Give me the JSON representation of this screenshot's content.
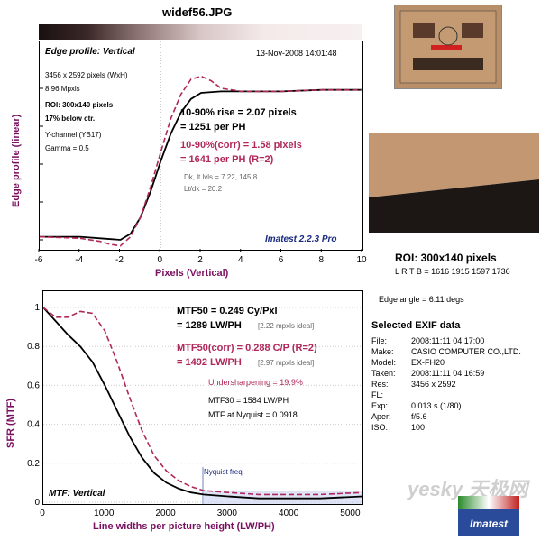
{
  "title": "widef56.JPG",
  "edge": {
    "heading": "Edge profile: Vertical",
    "date": "13-Nov-2008 14:01:48",
    "dims": "3456 x 2592 pixels (WxH)",
    "mpxls": "8.96 Mpxls",
    "roi": "ROI: 300x140 pixels",
    "below": "17% below ctr.",
    "channel": "Y-channel  (YB17)",
    "gamma": "Gamma = 0.5",
    "rise1": "10-90% rise = 2.07 pixels",
    "rise2": "= 1251 per PH",
    "corr1": "10-90%(corr) = 1.58 pixels",
    "corr2": "= 1641 per PH   (R=2)",
    "dk": "Dk, lt lvls = 7.22, 145.8",
    "ltdk": "Lt/dk = 20.2",
    "version": "Imatest 2.2.3 Pro",
    "ylabel": "Edge profile (linear)",
    "xlabel": "Pixels (Vertical)"
  },
  "mtf": {
    "mtf50_1": "MTF50 = 0.249 Cy/Pxl",
    "mtf50_2": "= 1289 LW/PH",
    "ideal1": "[2.22 mpxls ideal]",
    "corr1": "MTF50(corr) = 0.288 C/P  (R=2)",
    "corr2": "= 1492 LW/PH",
    "ideal2": "[2.97 mpxls ideal]",
    "under": "Undersharpening = 19.9%",
    "mtf30": "MTF30 = 1584 LW/PH",
    "nyq": "MTF at Nyquist = 0.0918",
    "nyqlabel": "Nyquist freq.",
    "heading": "MTF: Vertical",
    "ylabel": "SFR (MTF)",
    "xlabel": "Line widths per picture height (LW/PH)"
  },
  "roi_info": {
    "roi": "ROI: 300x140 pixels",
    "lrtb": "L R  T B = 1616 1915   1597 1736",
    "angle": "Edge angle = 6.11 degs"
  },
  "exif": {
    "title": "Selected EXIF data",
    "rows": [
      [
        "File:",
        "2008:11:11 04:17:00"
      ],
      [
        "Make:",
        "CASIO COMPUTER CO.,LTD."
      ],
      [
        "Model:",
        "EX-FH20"
      ],
      [
        "Taken:",
        "2008:11:11 04:16:59"
      ],
      [
        "Res:",
        "3456 x 2592"
      ],
      [
        "FL:",
        ""
      ],
      [
        "Exp:",
        "0.013 s  (1/80)"
      ],
      [
        "Aper:",
        "f/5.6"
      ],
      [
        "ISO:",
        "100"
      ]
    ]
  },
  "logo": "Imatest",
  "watermark": "yesky 天极网",
  "colors": {
    "measured": "#000000",
    "corrected": "#b0285a",
    "nyquist_fill": "#c8d0f0",
    "label_purple": "#7a1060"
  },
  "chart_data": [
    {
      "type": "line",
      "title": "Edge profile: Vertical",
      "xlabel": "Pixels (Vertical)",
      "ylabel": "Edge profile (linear)",
      "xlim": [
        -6,
        10
      ],
      "xticks": [
        -6,
        -4,
        -2,
        0,
        2,
        4,
        6,
        8,
        10
      ],
      "series": [
        {
          "x": [
            -6,
            -4,
            -3,
            -2,
            -1.5,
            -1,
            -0.5,
            0,
            0.5,
            1,
            1.5,
            2,
            3,
            4,
            6,
            8,
            10
          ],
          "y": [
            0.02,
            0.02,
            0.01,
            0.0,
            0.04,
            0.15,
            0.32,
            0.52,
            0.7,
            0.84,
            0.93,
            0.97,
            0.98,
            0.98,
            0.98,
            0.99,
            0.99
          ]
        },
        {
          "x": [
            -6,
            -4,
            -3,
            -2.5,
            -2,
            -1.5,
            -1,
            -0.5,
            0,
            0.5,
            1,
            1.5,
            2,
            2.5,
            3,
            4,
            6,
            8,
            10
          ],
          "y": [
            0.02,
            0.01,
            -0.01,
            -0.03,
            -0.04,
            0.02,
            0.15,
            0.35,
            0.58,
            0.8,
            0.96,
            1.06,
            1.08,
            1.05,
            1.0,
            0.98,
            0.98,
            0.99,
            0.99
          ]
        }
      ]
    },
    {
      "type": "line",
      "title": "MTF: Vertical",
      "xlabel": "Line widths per picture height (LW/PH)",
      "ylabel": "SFR (MTF)",
      "xlim": [
        0,
        5184
      ],
      "ylim": [
        0,
        1
      ],
      "xticks": [
        0,
        1000,
        2000,
        3000,
        4000,
        5000
      ],
      "yticks": [
        0,
        0.2,
        0.4,
        0.6,
        0.8,
        1
      ],
      "nyquist": 2592,
      "series": [
        {
          "x": [
            0,
            200,
            400,
            600,
            800,
            1000,
            1200,
            1400,
            1600,
            1800,
            2000,
            2200,
            2400,
            2600,
            3000,
            3500,
            4000,
            4500,
            5184
          ],
          "y": [
            1.0,
            0.93,
            0.86,
            0.8,
            0.72,
            0.6,
            0.47,
            0.34,
            0.23,
            0.15,
            0.1,
            0.07,
            0.05,
            0.04,
            0.03,
            0.02,
            0.02,
            0.02,
            0.03
          ]
        },
        {
          "x": [
            0,
            200,
            400,
            600,
            800,
            1000,
            1200,
            1400,
            1600,
            1800,
            2000,
            2200,
            2400,
            2600,
            3000,
            3500,
            4000,
            4500,
            5184
          ],
          "y": [
            1.0,
            0.95,
            0.95,
            0.98,
            0.97,
            0.88,
            0.72,
            0.54,
            0.37,
            0.24,
            0.16,
            0.11,
            0.08,
            0.06,
            0.05,
            0.04,
            0.04,
            0.04,
            0.05
          ]
        }
      ]
    }
  ]
}
